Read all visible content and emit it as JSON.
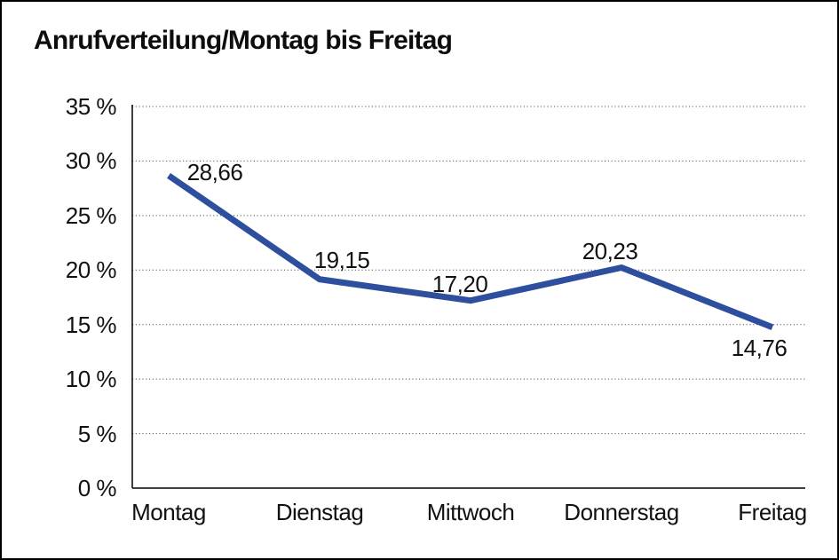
{
  "chart": {
    "title": "Anrufverteilung/Montag bis Freitag"
  },
  "chart_data": {
    "type": "line",
    "title": "Anrufverteilung/Montag bis Freitag",
    "categories": [
      "Montag",
      "Dienstag",
      "Mittwoch",
      "Donnerstag",
      "Freitag"
    ],
    "values": [
      28.66,
      19.15,
      17.2,
      20.23,
      14.76
    ],
    "data_labels": [
      "28,66",
      "19,15",
      "17,20",
      "20,23",
      "14,76"
    ],
    "xlabel": "",
    "ylabel": "",
    "ylim": [
      0,
      35
    ],
    "ytick_step": 5,
    "ytick_labels": [
      "0 %",
      "5 %",
      "10 %",
      "15 %",
      "20 %",
      "25 %",
      "30 %",
      "35 %"
    ],
    "grid": "horizontal-dotted",
    "legend_position": "none",
    "line_color": "#2e4f9e",
    "line_width": 7,
    "axis_color": "#000000",
    "grid_color": "#555555",
    "text_color": "#111111",
    "background_color": "#ffffff"
  }
}
